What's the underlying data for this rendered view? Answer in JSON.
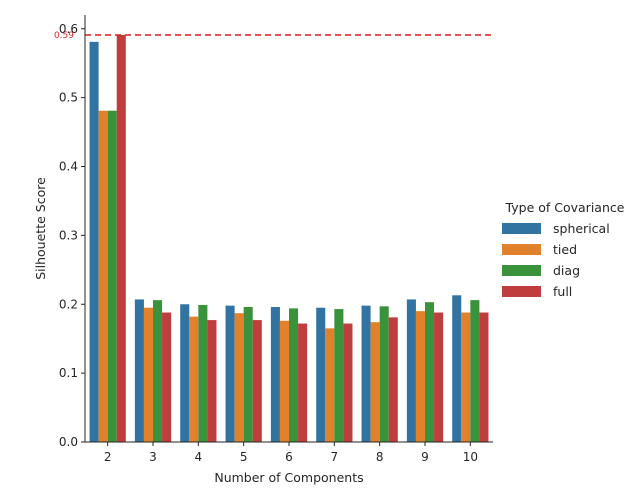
{
  "chart_data": {
    "type": "bar",
    "xlabel": "Number of Components",
    "ylabel": "Silhouette Score",
    "ylim": [
      0,
      0.62
    ],
    "yticks": [
      "0.0",
      "0.1",
      "0.2",
      "0.3",
      "0.4",
      "0.5",
      "0.6"
    ],
    "categories": [
      "2",
      "3",
      "4",
      "5",
      "6",
      "7",
      "8",
      "9",
      "10"
    ],
    "legend": {
      "title": "Type of Covariance",
      "placement": "right"
    },
    "series": [
      {
        "name": "spherical",
        "color": "#3274a1",
        "values": [
          0.581,
          0.207,
          0.2,
          0.198,
          0.196,
          0.195,
          0.198,
          0.207,
          0.213
        ]
      },
      {
        "name": "tied",
        "color": "#e1812c",
        "values": [
          0.481,
          0.195,
          0.182,
          0.187,
          0.176,
          0.165,
          0.174,
          0.19,
          0.188
        ]
      },
      {
        "name": "diag",
        "color": "#3a923a",
        "values": [
          0.481,
          0.206,
          0.199,
          0.196,
          0.194,
          0.193,
          0.197,
          0.203,
          0.206
        ]
      },
      {
        "name": "full",
        "color": "#c03d3e",
        "values": [
          0.591,
          0.188,
          0.177,
          0.177,
          0.172,
          0.172,
          0.181,
          0.188,
          0.188
        ]
      }
    ],
    "reference_line": {
      "value": 0.591,
      "label": "0.59",
      "color": "#e31a1c",
      "style": "dashed"
    }
  }
}
